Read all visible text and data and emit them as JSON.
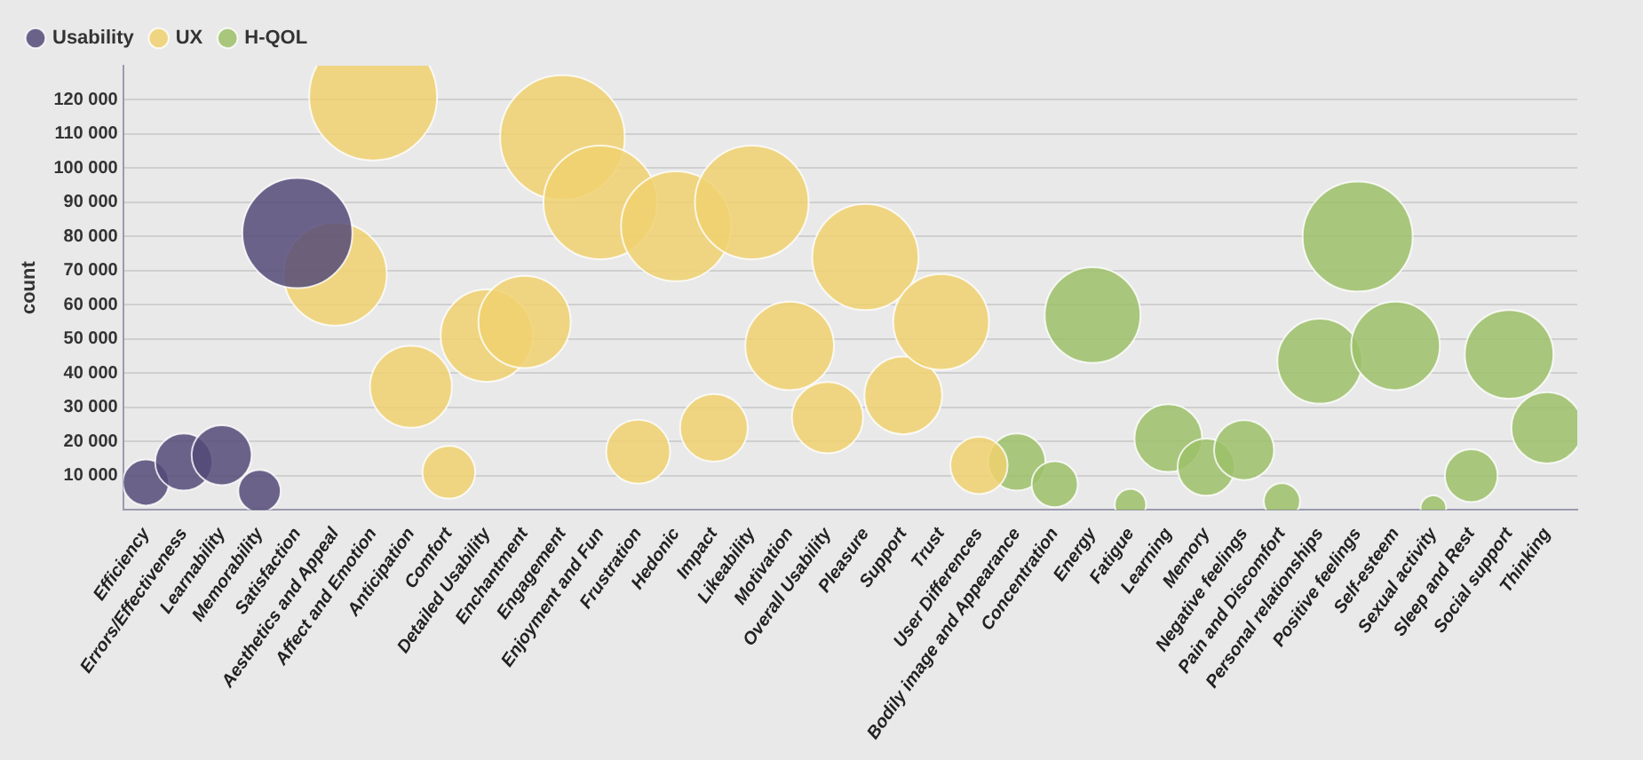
{
  "chart_data": {
    "type": "bubble",
    "ylabel": "count",
    "categories": [
      "Efficiency",
      "Errors/Effectiveness",
      "Learnability",
      "Memorability",
      "Satisfaction",
      "Aesthetics and Appeal",
      "Affect and Emotion",
      "Anticipation",
      "Comfort",
      "Detailed Usability",
      "Enchantment",
      "Engagement",
      "Enjoyment and Fun",
      "Frustration",
      "Hedonic",
      "Impact",
      "Likeability",
      "Motivation",
      "Overall Usability",
      "Pleasure",
      "Support",
      "Trust",
      "User Differences",
      "Bodily image and Appearance",
      "Concentration",
      "Energy",
      "Fatigue",
      "Learning",
      "Memory",
      "Negative feelings",
      "Pain and Discomfort",
      "Personal relationships",
      "Positive feelings",
      "Self-esteem",
      "Sexual activity",
      "Sleep and Rest",
      "Social support",
      "Thinking"
    ],
    "series": [
      {
        "name": "Usability",
        "color": "#544a78",
        "x": [
          "Efficiency",
          "Errors/Effectiveness",
          "Learnability",
          "Memorability",
          "Satisfaction"
        ],
        "values": [
          8000,
          14000,
          16000,
          5500,
          81000
        ],
        "sizes": [
          0.13,
          0.2,
          0.22,
          0.11,
          0.74
        ]
      },
      {
        "name": "UX",
        "color": "#f0d170",
        "x": [
          "Aesthetics and Appeal",
          "Affect and Emotion",
          "Anticipation",
          "Comfort",
          "Detailed Usability",
          "Enchantment",
          "Engagement",
          "Enjoyment and Fun",
          "Frustration",
          "Hedonic",
          "Impact",
          "Likeability",
          "Motivation",
          "Overall Usability",
          "Pleasure",
          "Support",
          "Trust",
          "User Differences"
        ],
        "values": [
          69000,
          121000,
          36000,
          11000,
          51000,
          55000,
          109000,
          90000,
          17000,
          83000,
          24000,
          90000,
          48000,
          27000,
          74000,
          33500,
          55000,
          13000
        ],
        "sizes": [
          0.65,
          1,
          0.41,
          0.17,
          0.52,
          0.52,
          0.95,
          0.79,
          0.25,
          0.74,
          0.28,
          0.79,
          0.48,
          0.31,
          0.69,
          0.37,
          0.56,
          0.2
        ]
      },
      {
        "name": "H-QOL",
        "color": "#9cc068",
        "x": [
          "Bodily image and Appearance",
          "Concentration",
          "Energy",
          "Fatigue",
          "Learning",
          "Memory",
          "Negative feelings",
          "Pain and Discomfort",
          "Personal relationships",
          "Positive feelings",
          "Self-esteem",
          "Sexual activity",
          "Sleep and Rest",
          "Social support",
          "Thinking"
        ],
        "values": [
          14000,
          7500,
          57000,
          1500,
          21000,
          12500,
          17500,
          2500,
          43500,
          80000,
          48000,
          500,
          10000,
          45500,
          24000
        ],
        "sizes": [
          0.2,
          0.13,
          0.56,
          0.06,
          0.28,
          0.2,
          0.22,
          0.08,
          0.44,
          0.74,
          0.48,
          0.04,
          0.17,
          0.48,
          0.31
        ]
      }
    ],
    "ylim": [
      0,
      130000
    ],
    "yticks": [
      {
        "value": 10000,
        "label": "10 000"
      },
      {
        "value": 20000,
        "label": "20 000"
      },
      {
        "value": 30000,
        "label": "30 000"
      },
      {
        "value": 40000,
        "label": "40 000"
      },
      {
        "value": 50000,
        "label": "50 000"
      },
      {
        "value": 60000,
        "label": "60 000"
      },
      {
        "value": 70000,
        "label": "70 000"
      },
      {
        "value": 80000,
        "label": "80 000"
      },
      {
        "value": 90000,
        "label": "90 000"
      },
      {
        "value": 100000,
        "label": "100 000"
      },
      {
        "value": 110000,
        "label": "110 000"
      },
      {
        "value": 120000,
        "label": "120 000"
      }
    ],
    "grid": "y",
    "legend": "top left"
  }
}
